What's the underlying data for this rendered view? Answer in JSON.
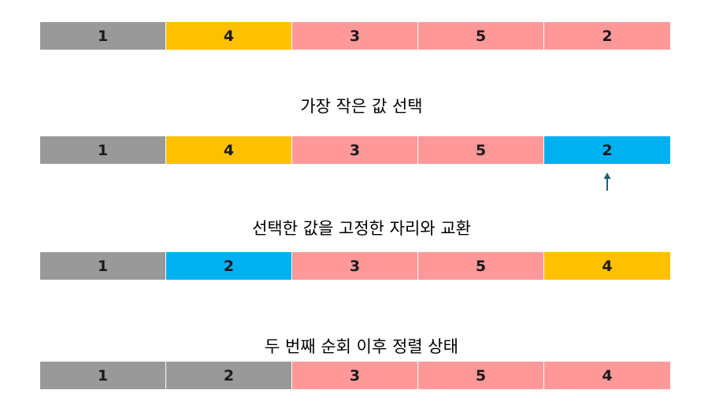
{
  "colors": {
    "gray": "#999999",
    "yellow": "#ffc000",
    "pink": "#ff9999",
    "blue": "#00b0f0",
    "arrow": "#1f5f6e"
  },
  "rows": [
    {
      "cells": [
        {
          "value": "1",
          "color": "#999999"
        },
        {
          "value": "4",
          "color": "#ffc000"
        },
        {
          "value": "3",
          "color": "#ff9999"
        },
        {
          "value": "5",
          "color": "#ff9999"
        },
        {
          "value": "2",
          "color": "#ff9999"
        }
      ]
    },
    {
      "cells": [
        {
          "value": "1",
          "color": "#999999"
        },
        {
          "value": "4",
          "color": "#ffc000"
        },
        {
          "value": "3",
          "color": "#ff9999"
        },
        {
          "value": "5",
          "color": "#ff9999"
        },
        {
          "value": "2",
          "color": "#00b0f0"
        }
      ]
    },
    {
      "cells": [
        {
          "value": "1",
          "color": "#999999"
        },
        {
          "value": "2",
          "color": "#00b0f0"
        },
        {
          "value": "3",
          "color": "#ff9999"
        },
        {
          "value": "5",
          "color": "#ff9999"
        },
        {
          "value": "4",
          "color": "#ffc000"
        }
      ]
    },
    {
      "cells": [
        {
          "value": "1",
          "color": "#999999"
        },
        {
          "value": "2",
          "color": "#999999"
        },
        {
          "value": "3",
          "color": "#ff9999"
        },
        {
          "value": "5",
          "color": "#ff9999"
        },
        {
          "value": "4",
          "color": "#ff9999"
        }
      ]
    }
  ],
  "captions": {
    "select_min": "가장 작은 값 선택",
    "swap": "선택한 값을 고정한 자리와 교환",
    "after_second_pass": "두 번째 순회 이후 정렬 상태"
  },
  "pointer": {
    "icon": "up-arrow-icon"
  }
}
